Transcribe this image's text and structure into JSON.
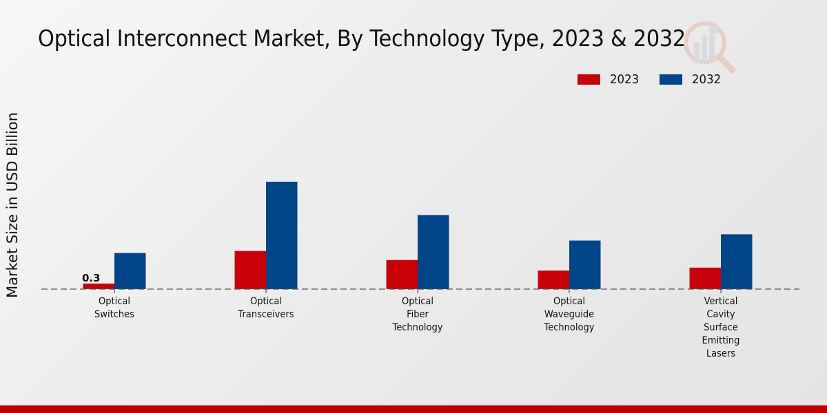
{
  "chart_data": {
    "type": "bar",
    "title": "Optical Interconnect Market, By Technology Type, 2023 & 2032",
    "xlabel": "",
    "ylabel": "Market Size in USD Billion",
    "categories": [
      "Optical Switches",
      "Optical Transceivers",
      "Optical Fiber Technology",
      "Optical Waveguide Technology",
      "Vertical Cavity Surface Emitting Lasers"
    ],
    "category_label_lines": [
      [
        "Optical",
        "Switches"
      ],
      [
        "Optical",
        "Transceivers"
      ],
      [
        "Optical",
        "Fiber",
        "Technology"
      ],
      [
        "Optical",
        "Waveguide",
        "Technology"
      ],
      [
        "Vertical",
        "Cavity",
        "Surface",
        "Emitting",
        "Lasers"
      ]
    ],
    "series": [
      {
        "name": "2023",
        "color": "#c8000a",
        "values": [
          0.3,
          2.06,
          1.57,
          1.0,
          1.16
        ]
      },
      {
        "name": "2032",
        "color": "#004588",
        "values": [
          1.95,
          5.8,
          4.0,
          2.62,
          2.96
        ]
      }
    ],
    "data_labels": [
      {
        "series": "2023",
        "category": "Optical Switches",
        "text": "0.3"
      }
    ],
    "ylim": [
      0,
      14.5
    ],
    "grid": false,
    "baseline_style": "dashed",
    "legend_position": "top-right"
  },
  "footer_color": "#c00000",
  "watermark_icon": "chart-magnifier-logo-icon"
}
